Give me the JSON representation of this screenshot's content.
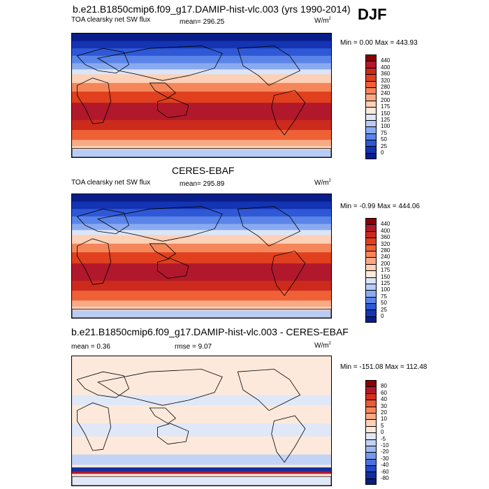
{
  "header": {
    "main_title": "b.e21.B1850cmip6.f09_g17.DAMIP-hist-vlc.003 (yrs 1990-2014)",
    "season": "DJF"
  },
  "panels": [
    {
      "title": "",
      "subtitle_left": "TOA clearsky net SW flux",
      "subtitle_mid": "mean= 296.25",
      "units": "W/m",
      "units_exp": "2",
      "minmax": "Min =   0.00 Max = 443.93",
      "colorbar": {
        "labels": [
          "440",
          "400",
          "360",
          "320",
          "280",
          "240",
          "200",
          "175",
          "150",
          "125",
          "100",
          "75",
          "50",
          "25",
          "0"
        ],
        "colors": [
          "#8b0000",
          "#b2182b",
          "#cc2a1c",
          "#e0401e",
          "#ee6035",
          "#f4865a",
          "#f8aa85",
          "#fdd0b8",
          "#fde9dc",
          "#dbe5f8",
          "#b8ccf5",
          "#8aaaf0",
          "#5a84e8",
          "#2f58d6",
          "#1434b3",
          "#0a1e8a"
        ]
      }
    },
    {
      "title": "CERES-EBAF",
      "subtitle_left": "TOA clearsky net SW flux",
      "subtitle_mid": "mean= 295.89",
      "units": "W/m",
      "units_exp": "2",
      "minmax": "Min =  -0.99 Max = 444.06",
      "colorbar": {
        "labels": [
          "440",
          "400",
          "360",
          "320",
          "280",
          "240",
          "200",
          "175",
          "150",
          "125",
          "100",
          "75",
          "50",
          "25",
          "0"
        ],
        "colors": [
          "#8b0000",
          "#b2182b",
          "#cc2a1c",
          "#e0401e",
          "#ee6035",
          "#f4865a",
          "#f8aa85",
          "#fdd0b8",
          "#fde9dc",
          "#dbe5f8",
          "#b8ccf5",
          "#8aaaf0",
          "#5a84e8",
          "#2f58d6",
          "#1434b3",
          "#0a1e8a"
        ]
      }
    },
    {
      "title": "b.e21.B1850cmip6.f09_g17.DAMIP-hist-vlc.003 - CERES-EBAF",
      "subtitle_left": "mean =   0.36",
      "subtitle_mid": "rmse =   9.07",
      "units": "W/m",
      "units_exp": "2",
      "minmax": "Min = -151.08 Max = 112.48",
      "colorbar": {
        "labels": [
          "80",
          "60",
          "40",
          "30",
          "20",
          "10",
          "5",
          "0",
          "-5",
          "-10",
          "-20",
          "-30",
          "-40",
          "-60",
          "-80"
        ],
        "colors": [
          "#8b0000",
          "#b2182b",
          "#d6301e",
          "#ec5a3a",
          "#f4865a",
          "#f8aa85",
          "#fdd0b8",
          "#fde9dc",
          "#e0e8f8",
          "#c3d3f5",
          "#9fb8f0",
          "#7797ea",
          "#4d72de",
          "#2548c4",
          "#1030a0",
          "#0a1e7a"
        ]
      }
    }
  ]
}
